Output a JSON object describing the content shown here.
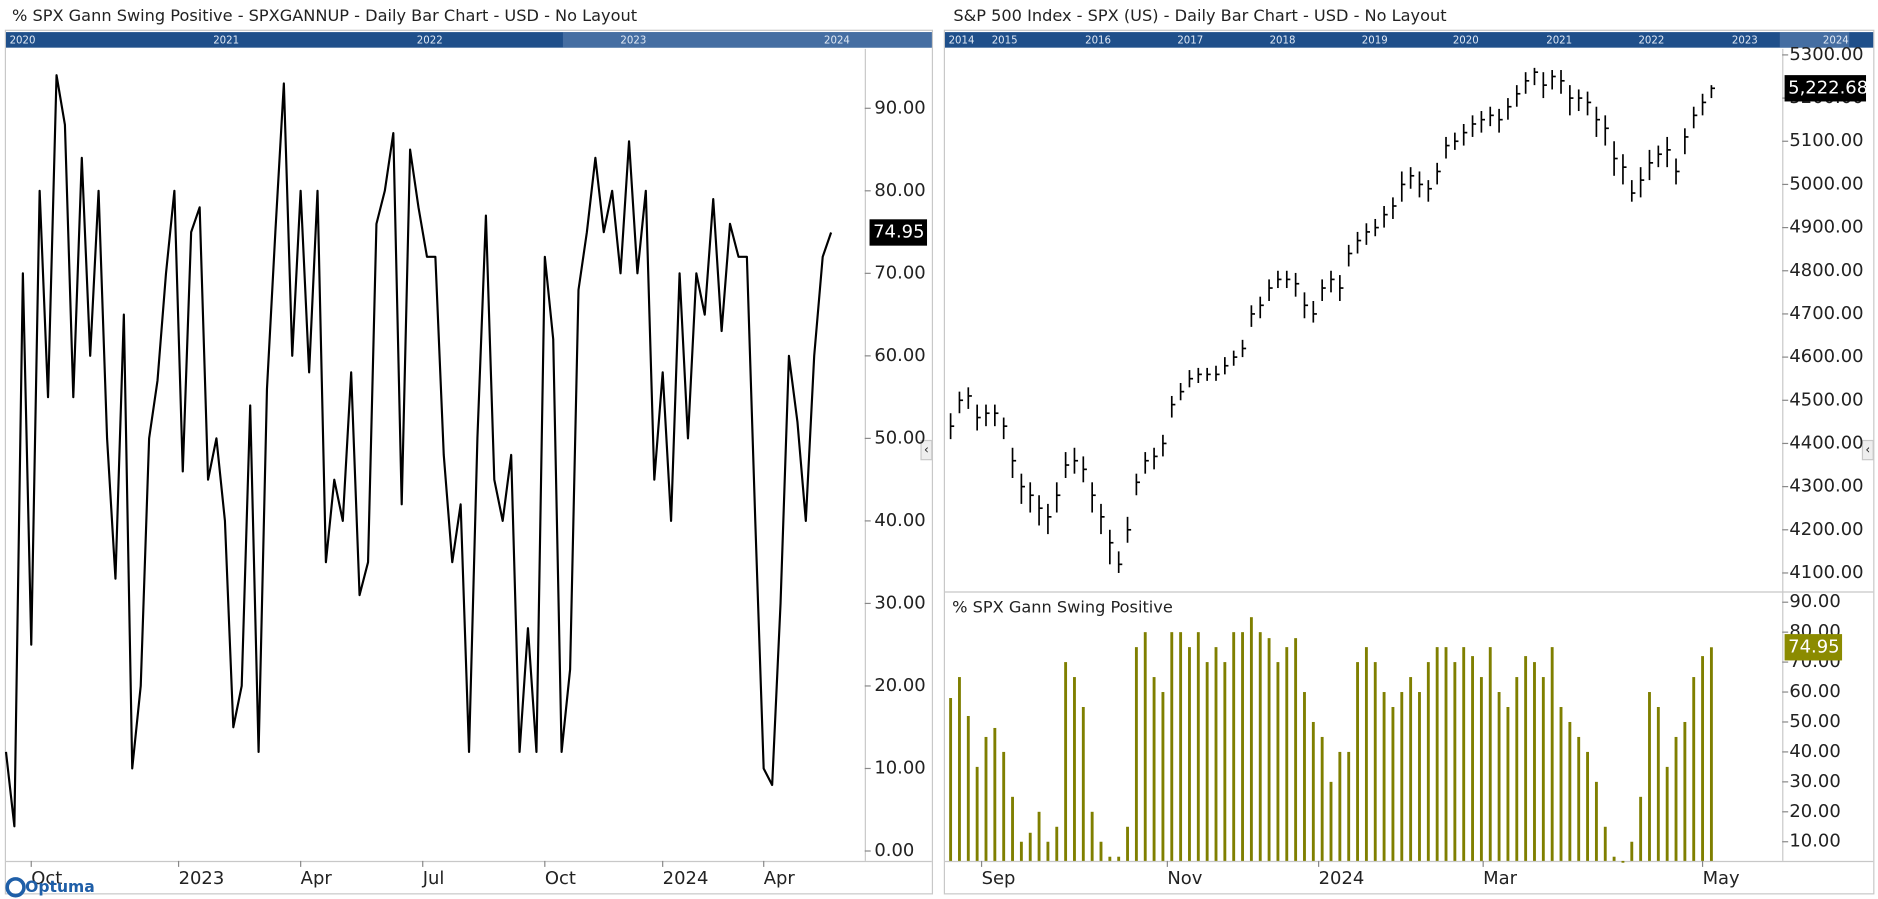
{
  "chart_data": [
    {
      "type": "line",
      "title": "% SPX Gann Swing Positive - SPXGANNUP - Daily Bar Chart - USD - No Layout",
      "navigator_labels": [
        "2020",
        "2021",
        "2022",
        "2023",
        "2024"
      ],
      "color": "#000000",
      "last_color": "#000000",
      "values": [
        12,
        3,
        70,
        25,
        80,
        55,
        94,
        88,
        55,
        84,
        60,
        80,
        50,
        33,
        65,
        10,
        20,
        50,
        57,
        70,
        80,
        46,
        75,
        78,
        45,
        50,
        40,
        15,
        20,
        54,
        12,
        56,
        75,
        93,
        60,
        80,
        58,
        80,
        35,
        45,
        40,
        58,
        31,
        35,
        76,
        80,
        87,
        42,
        85,
        78,
        72,
        72,
        48,
        35,
        42,
        12,
        50,
        77,
        45,
        40,
        48,
        12,
        27,
        12,
        72,
        62,
        12,
        22,
        68,
        75,
        84,
        75,
        80,
        70,
        86,
        70,
        80,
        45,
        58,
        40,
        70,
        50,
        70,
        65,
        79,
        63,
        76,
        72,
        72,
        40,
        10,
        8,
        30,
        60,
        52,
        40,
        60,
        72,
        74.95
      ],
      "xlim": [
        0,
        102
      ],
      "xticks": [
        {
          "value": 3,
          "label": "Oct"
        },
        {
          "value": 20.5,
          "label": "2023"
        },
        {
          "value": 35,
          "label": "Apr"
        },
        {
          "value": 49.5,
          "label": "Jul"
        },
        {
          "value": 64,
          "label": "Oct"
        },
        {
          "value": 78,
          "label": "2024"
        },
        {
          "value": 90,
          "label": "Apr"
        }
      ],
      "ylim": [
        -1.2,
        97.2
      ],
      "yticks": [
        {
          "value": 0,
          "label": "0.00"
        },
        {
          "value": 10,
          "label": "10.00"
        },
        {
          "value": 20,
          "label": "20.00"
        },
        {
          "value": 30,
          "label": "30.00"
        },
        {
          "value": 40,
          "label": "40.00"
        },
        {
          "value": 50,
          "label": "50.00"
        },
        {
          "value": 60,
          "label": "60.00"
        },
        {
          "value": 70,
          "label": "70.00"
        },
        {
          "value": 80,
          "label": "80.00"
        },
        {
          "value": 90,
          "label": "90.00"
        }
      ]
    },
    {
      "type": "ohlc",
      "title": "S&P 500 Index - SPX (US) - Daily Bar Chart - USD - No Layout",
      "navigator_labels": [
        "2014",
        "2015",
        "2016",
        "2017",
        "2018",
        "2019",
        "2020",
        "2021",
        "2022",
        "2023",
        "2024"
      ],
      "color": "#000000",
      "last_color": "#000000",
      "last_value_label": "5,222.68",
      "high": [
        4470,
        4520,
        4530,
        4490,
        4490,
        4490,
        4460,
        4390,
        4330,
        4310,
        4280,
        4260,
        4310,
        4380,
        4390,
        4370,
        4310,
        4260,
        4200,
        4150,
        4230,
        4330,
        4380,
        4390,
        4420,
        4510,
        4540,
        4570,
        4575,
        4575,
        4580,
        4600,
        4615,
        4640,
        4720,
        4740,
        4780,
        4800,
        4800,
        4795,
        4750,
        4730,
        4780,
        4800,
        4790,
        4860,
        4890,
        4910,
        4920,
        4950,
        4970,
        5030,
        5040,
        5030,
        5010,
        5050,
        5110,
        5120,
        5140,
        5160,
        5170,
        5180,
        5175,
        5200,
        5230,
        5260,
        5270,
        5260,
        5265,
        5265,
        5230,
        5220,
        5215,
        5180,
        5160,
        5100,
        5070,
        5010,
        5040,
        5080,
        5090,
        5110,
        5060,
        5130,
        5180,
        5210,
        5230
      ],
      "low": [
        4410,
        4470,
        4480,
        4430,
        4440,
        4440,
        4410,
        4320,
        4260,
        4240,
        4210,
        4190,
        4240,
        4320,
        4330,
        4310,
        4240,
        4190,
        4120,
        4100,
        4170,
        4280,
        4330,
        4340,
        4370,
        4460,
        4500,
        4530,
        4540,
        4545,
        4545,
        4560,
        4580,
        4600,
        4670,
        4690,
        4730,
        4760,
        4760,
        4740,
        4690,
        4680,
        4730,
        4750,
        4730,
        4810,
        4840,
        4860,
        4880,
        4900,
        4920,
        4960,
        4990,
        4970,
        4960,
        5000,
        5060,
        5080,
        5090,
        5110,
        5120,
        5135,
        5120,
        5150,
        5180,
        5210,
        5230,
        5200,
        5220,
        5210,
        5160,
        5170,
        5160,
        5110,
        5090,
        5020,
        5000,
        4960,
        4970,
        5010,
        5040,
        5040,
        5000,
        5070,
        5130,
        5160,
        5200
      ],
      "close": [
        4440,
        4500,
        4510,
        4460,
        4470,
        4470,
        4440,
        4360,
        4300,
        4280,
        4250,
        4230,
        4280,
        4350,
        4360,
        4340,
        4280,
        4230,
        4170,
        4120,
        4200,
        4310,
        4360,
        4370,
        4400,
        4490,
        4520,
        4550,
        4560,
        4560,
        4560,
        4580,
        4600,
        4620,
        4700,
        4720,
        4760,
        4780,
        4780,
        4770,
        4720,
        4700,
        4760,
        4780,
        4760,
        4840,
        4870,
        4890,
        4900,
        4930,
        4950,
        5000,
        5020,
        5000,
        4990,
        5030,
        5090,
        5100,
        5120,
        5140,
        5150,
        5160,
        5150,
        5180,
        5210,
        5240,
        5260,
        5230,
        5250,
        5240,
        5200,
        5200,
        5190,
        5150,
        5130,
        5060,
        5040,
        4980,
        5010,
        5050,
        5070,
        5080,
        5030,
        5110,
        5160,
        5190,
        5222.68
      ],
      "xlim": [
        -0.5,
        94
      ],
      "ylim": [
        4060,
        5314
      ],
      "yticks": [
        {
          "value": 4100,
          "label": "4100.00"
        },
        {
          "value": 4200,
          "label": "4200.00"
        },
        {
          "value": 4300,
          "label": "4300.00"
        },
        {
          "value": 4400,
          "label": "4400.00"
        },
        {
          "value": 4500,
          "label": "4500.00"
        },
        {
          "value": 4600,
          "label": "4600.00"
        },
        {
          "value": 4700,
          "label": "4700.00"
        },
        {
          "value": 4800,
          "label": "4800.00"
        },
        {
          "value": 4900,
          "label": "4900.00"
        },
        {
          "value": 5000,
          "label": "5000.00"
        },
        {
          "value": 5100,
          "label": "5100.00"
        },
        {
          "value": 5200,
          "label": "5200.00"
        },
        {
          "value": 5300,
          "label": "5300.00"
        }
      ]
    },
    {
      "type": "bar",
      "title": "% SPX Gann Swing Positive",
      "color": "#7f7f00",
      "last_color": "#8b8b00",
      "values": [
        58,
        65,
        52,
        35,
        45,
        48,
        40,
        25,
        10,
        13,
        20,
        10,
        15,
        70,
        65,
        55,
        20,
        10,
        5,
        5,
        15,
        75,
        80,
        65,
        60,
        80,
        80,
        75,
        80,
        70,
        75,
        70,
        80,
        80,
        85,
        80,
        78,
        70,
        75,
        78,
        60,
        50,
        45,
        30,
        40,
        40,
        70,
        75,
        70,
        60,
        55,
        60,
        65,
        60,
        70,
        75,
        75,
        70,
        75,
        72,
        65,
        75,
        60,
        55,
        65,
        72,
        70,
        65,
        75,
        55,
        50,
        45,
        40,
        30,
        15,
        5,
        3,
        10,
        25,
        60,
        55,
        35,
        45,
        50,
        65,
        72,
        74.95
      ],
      "xlim": [
        -0.5,
        94
      ],
      "xticks": [
        {
          "value": 3.5,
          "label": "Sep"
        },
        {
          "value": 24.5,
          "label": "Nov"
        },
        {
          "value": 41.6,
          "label": "2024"
        },
        {
          "value": 60.2,
          "label": "Mar"
        },
        {
          "value": 85,
          "label": "May"
        }
      ],
      "ylim": [
        3.6,
        93.2
      ],
      "yticks": [
        {
          "value": 10,
          "label": "10.00"
        },
        {
          "value": 20,
          "label": "20.00"
        },
        {
          "value": 30,
          "label": "30.00"
        },
        {
          "value": 40,
          "label": "40.00"
        },
        {
          "value": 50,
          "label": "50.00"
        },
        {
          "value": 60,
          "label": "60.00"
        },
        {
          "value": 70,
          "label": "70.00"
        },
        {
          "value": 80,
          "label": "80.00"
        },
        {
          "value": 90,
          "label": "90.00"
        }
      ]
    }
  ],
  "footer": {
    "brand": "Optuma"
  }
}
